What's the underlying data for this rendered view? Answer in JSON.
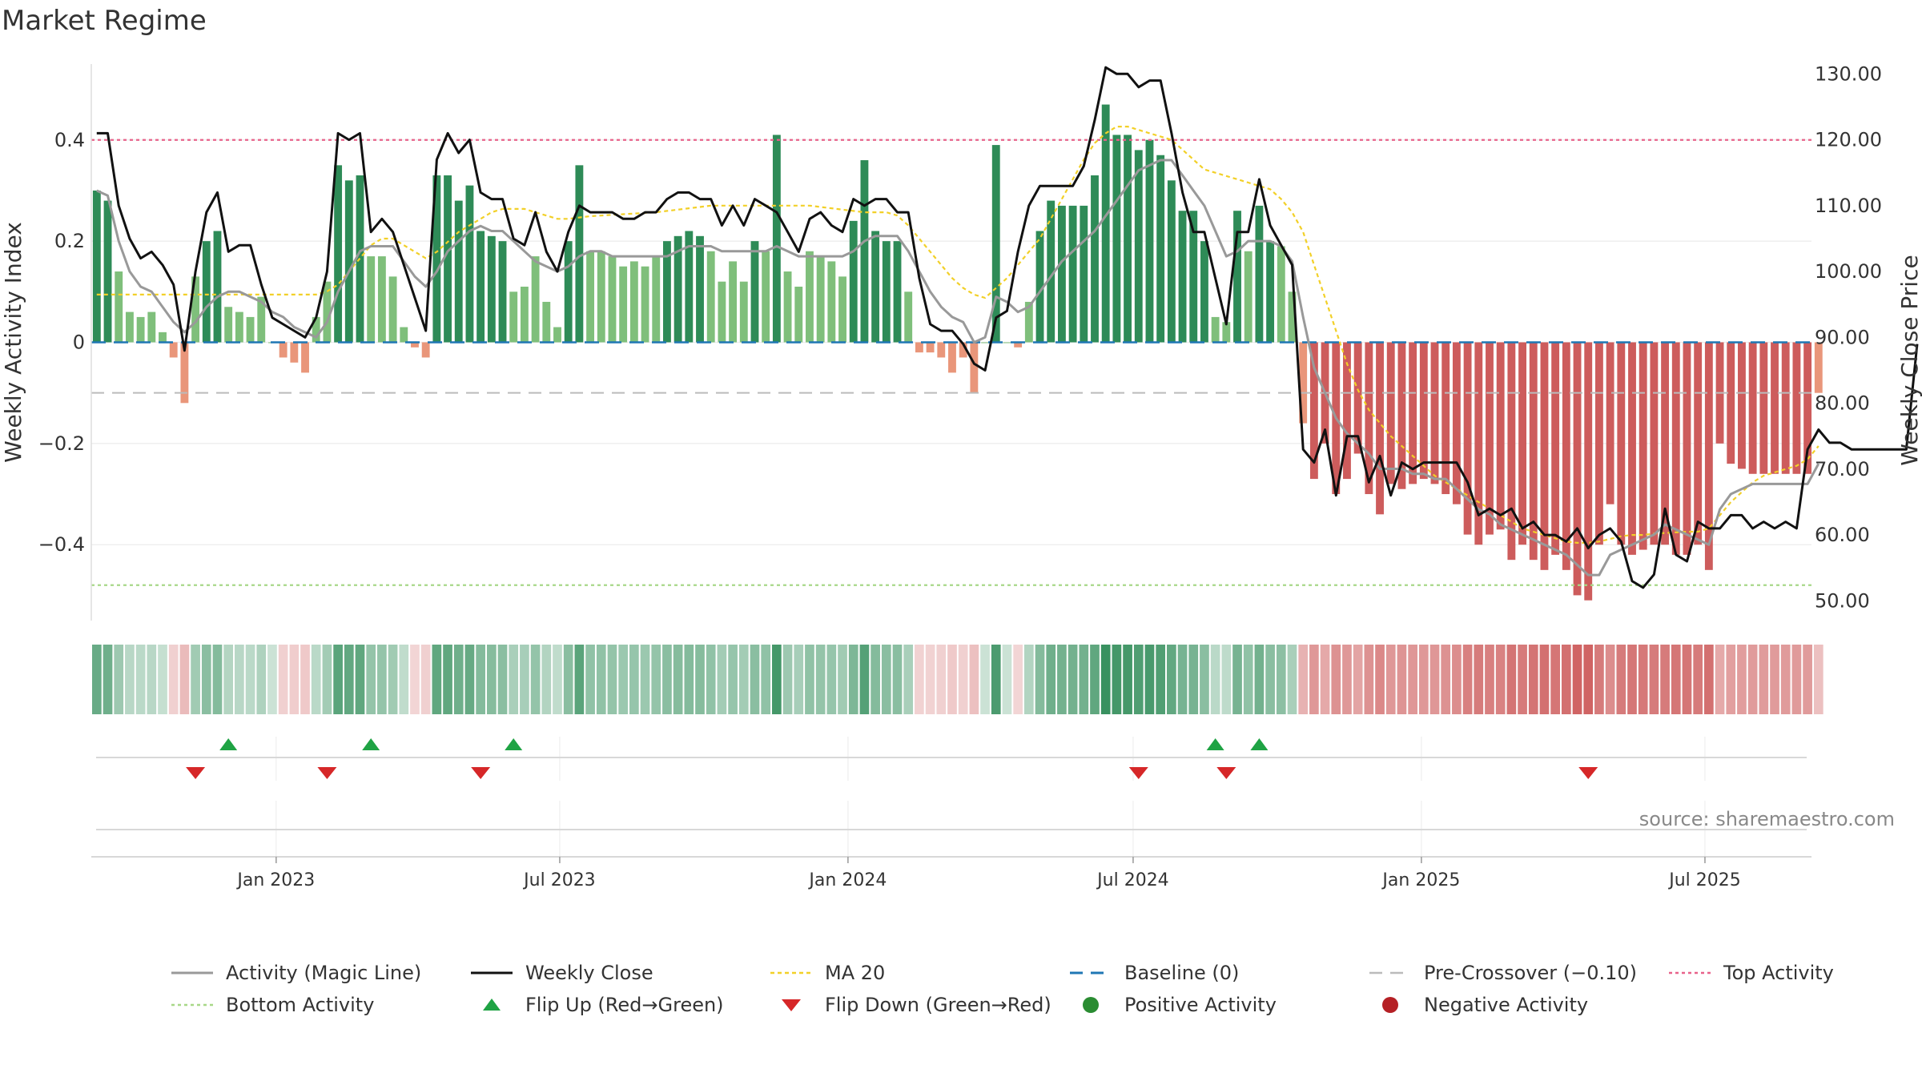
{
  "page": {
    "title": "Market Regime",
    "source": "source: sharemaestro.com"
  },
  "colors": {
    "pos_dark": "#2e8b57",
    "pos_light": "#7fbf7b",
    "neg_dark": "#cd5c5c",
    "neg_light": "#e9967a",
    "magic_line": "#999999",
    "weekly_close": "#111111",
    "ma20": "#f2d028",
    "baseline": "#1f77b4",
    "pre_crossover": "#bbbbbb",
    "top_activity": "#e8628a",
    "bottom_activity": "#a8d888",
    "flip_up": "#1fa344",
    "flip_down": "#d62728",
    "positive_dot": "#2a8c32",
    "negative_dot": "#b52025"
  },
  "chart_data": {
    "type": "bar",
    "title": "Market Regime",
    "ylabel": "Weekly Activity Index",
    "y2label": "Weekly Close Price",
    "ylim": [
      -0.55,
      0.55
    ],
    "y2lim": [
      47.0,
      131.5
    ],
    "y_ticks": [
      0.4,
      0.2,
      0,
      -0.2,
      -0.4
    ],
    "y_tick_labels": [
      "0.4",
      "0.2",
      "0",
      "−0.2",
      "−0.4"
    ],
    "y2_ticks": [
      130,
      120,
      110,
      100,
      90,
      80,
      70,
      60,
      50
    ],
    "y2_tick_labels": [
      "130.00",
      "120.00",
      "110.00",
      "100.00",
      "90.00",
      "80.00",
      "70.00",
      "60.00",
      "50.00"
    ],
    "x_ticks": [
      "2023-01-01",
      "2023-07-01",
      "2024-01-01",
      "2024-07-01",
      "2025-01-01",
      "2025-07-01"
    ],
    "x_tick_labels": [
      "Jan 2023",
      "Jul 2023",
      "Jan 2024",
      "Jul 2024",
      "Jan 2025",
      "Jul 2025"
    ],
    "xlim": [
      "2022-09-05",
      "2025-09-07"
    ],
    "weeks_start": "2022-09-05",
    "levels": {
      "top_activity": 0.4,
      "bottom_activity": -0.48,
      "baseline": 0,
      "pre_crossover": -0.1
    },
    "activity": [
      0.3,
      0.28,
      0.14,
      0.06,
      0.05,
      0.06,
      0.02,
      -0.03,
      -0.12,
      0.13,
      0.2,
      0.22,
      0.07,
      0.06,
      0.05,
      0.09,
      0,
      -0.03,
      -0.04,
      -0.06,
      0.05,
      0.12,
      0.35,
      0.32,
      0.33,
      0.17,
      0.17,
      0.13,
      0.03,
      -0.01,
      -0.03,
      0.33,
      0.33,
      0.28,
      0.31,
      0.22,
      0.21,
      0.2,
      0.1,
      0.11,
      0.17,
      0.08,
      0.03,
      0.2,
      0.35,
      0.18,
      0.18,
      0.17,
      0.15,
      0.16,
      0.15,
      0.17,
      0.2,
      0.21,
      0.22,
      0.21,
      0.18,
      0.12,
      0.16,
      0.12,
      0.2,
      0.18,
      0.41,
      0.14,
      0.11,
      0.18,
      0.17,
      0.16,
      0.13,
      0.24,
      0.36,
      0.22,
      0.2,
      0.2,
      0.1,
      -0.02,
      -0.02,
      -0.03,
      -0.06,
      -0.03,
      -0.1,
      0,
      0.39,
      0,
      -0.01,
      0.08,
      0.22,
      0.28,
      0.27,
      0.27,
      0.27,
      0.33,
      0.47,
      0.41,
      0.41,
      0.38,
      0.4,
      0.37,
      0.32,
      0.26,
      0.26,
      0.2,
      0.05,
      0.04,
      0.26,
      0.18,
      0.27,
      0.2,
      0.19,
      0.1,
      -0.16,
      -0.27,
      -0.2,
      -0.3,
      -0.27,
      -0.22,
      -0.3,
      -0.34,
      -0.28,
      -0.29,
      -0.28,
      -0.27,
      -0.28,
      -0.3,
      -0.32,
      -0.38,
      -0.4,
      -0.38,
      -0.37,
      -0.43,
      -0.4,
      -0.43,
      -0.45,
      -0.42,
      -0.45,
      -0.5,
      -0.51,
      -0.4,
      -0.32,
      -0.4,
      -0.42,
      -0.41,
      -0.4,
      -0.4,
      -0.42,
      -0.42,
      -0.4,
      -0.45,
      -0.2,
      -0.24,
      -0.25,
      -0.26,
      -0.26,
      -0.26,
      -0.26,
      -0.26,
      -0.26,
      -0.1
    ],
    "series": [
      {
        "name": "Activity (Magic Line)",
        "values": [
          0.3,
          0.29,
          0.2,
          0.14,
          0.11,
          0.1,
          0.07,
          0.04,
          0.02,
          0.04,
          0.07,
          0.09,
          0.1,
          0.1,
          0.09,
          0.08,
          0.06,
          0.05,
          0.03,
          0.02,
          0.01,
          0.04,
          0.1,
          0.14,
          0.18,
          0.19,
          0.19,
          0.19,
          0.16,
          0.13,
          0.11,
          0.14,
          0.18,
          0.2,
          0.22,
          0.23,
          0.22,
          0.22,
          0.2,
          0.18,
          0.16,
          0.15,
          0.14,
          0.15,
          0.17,
          0.18,
          0.18,
          0.17,
          0.17,
          0.17,
          0.17,
          0.17,
          0.17,
          0.18,
          0.19,
          0.19,
          0.19,
          0.18,
          0.18,
          0.18,
          0.18,
          0.18,
          0.19,
          0.18,
          0.17,
          0.17,
          0.17,
          0.17,
          0.17,
          0.18,
          0.2,
          0.21,
          0.21,
          0.21,
          0.18,
          0.14,
          0.1,
          0.07,
          0.05,
          0.04,
          0,
          0.01,
          0.09,
          0.08,
          0.06,
          0.07,
          0.1,
          0.13,
          0.16,
          0.18,
          0.2,
          0.22,
          0.25,
          0.28,
          0.31,
          0.34,
          0.35,
          0.36,
          0.36,
          0.33,
          0.3,
          0.27,
          0.22,
          0.17,
          0.18,
          0.2,
          0.2,
          0.2,
          0.19,
          0.16,
          0.05,
          -0.05,
          -0.1,
          -0.15,
          -0.18,
          -0.2,
          -0.22,
          -0.25,
          -0.25,
          -0.25,
          -0.26,
          -0.26,
          -0.27,
          -0.27,
          -0.29,
          -0.31,
          -0.33,
          -0.34,
          -0.36,
          -0.37,
          -0.38,
          -0.39,
          -0.4,
          -0.41,
          -0.42,
          -0.44,
          -0.46,
          -0.46,
          -0.42,
          -0.41,
          -0.4,
          -0.39,
          -0.38,
          -0.36,
          -0.37,
          -0.38,
          -0.39,
          -0.4,
          -0.33,
          -0.3,
          -0.29,
          -0.28,
          -0.28,
          -0.28,
          -0.28,
          -0.28,
          -0.28,
          -0.24
        ]
      },
      {
        "name": "Weekly Close",
        "values": [
          121,
          121,
          110,
          105,
          102,
          103,
          101,
          98,
          88,
          100,
          109,
          112,
          103,
          104,
          104,
          98,
          93,
          92,
          91,
          90,
          93,
          100,
          121,
          120,
          121,
          106,
          108,
          106,
          101,
          96,
          91,
          117,
          121,
          118,
          120,
          112,
          111,
          111,
          105,
          104,
          109,
          103,
          100,
          106,
          110,
          109,
          109,
          109,
          108,
          108,
          109,
          109,
          111,
          112,
          112,
          111,
          111,
          107,
          110,
          107,
          111,
          110,
          109,
          106,
          103,
          108,
          109,
          107,
          106,
          111,
          110,
          111,
          111,
          109,
          109,
          99,
          92,
          91,
          91,
          89,
          86,
          85,
          93,
          94,
          103,
          110,
          113,
          113,
          113,
          113,
          116,
          123,
          131,
          130,
          130,
          128,
          129,
          129,
          121,
          112,
          106,
          106,
          99,
          92,
          106,
          106,
          114,
          107,
          104,
          101,
          73,
          71,
          76,
          66,
          75,
          75,
          68,
          72,
          66,
          71,
          70,
          71,
          71,
          71,
          71,
          68,
          63,
          64,
          63,
          64,
          61,
          62,
          60,
          60,
          59,
          61,
          58,
          60,
          61,
          59,
          53,
          52,
          54,
          64,
          57,
          56,
          62,
          61,
          61,
          63,
          63,
          61,
          62,
          61,
          62,
          61,
          73,
          76,
          74,
          74,
          73,
          73,
          73,
          73,
          73,
          73,
          89
        ]
      },
      {
        "name": "MA 20",
        "values": [
          96.5,
          96.5,
          96.5,
          96.5,
          96.5,
          96.5,
          96.5,
          96.5,
          96.5,
          96.5,
          96.5,
          96.5,
          96.5,
          96.5,
          96.5,
          96.5,
          96.5,
          96.5,
          96.5,
          96.5,
          96.5,
          97,
          98,
          100,
          102,
          104,
          105,
          105,
          104,
          103,
          102,
          103,
          104.5,
          106,
          107,
          108,
          109,
          109.5,
          109.5,
          109.5,
          109,
          108.5,
          108,
          108,
          108.2,
          108.4,
          108.5,
          108.6,
          108.7,
          108.8,
          108.9,
          109,
          109.2,
          109.4,
          109.6,
          109.8,
          110,
          110,
          110,
          110,
          110,
          110,
          110,
          110,
          110,
          110,
          109.8,
          109.6,
          109.4,
          109.2,
          109,
          109,
          109,
          108.5,
          107,
          105,
          103,
          101,
          99,
          97.5,
          96.5,
          96,
          97.5,
          99,
          101,
          103,
          105,
          108,
          111,
          114,
          117,
          119.5,
          121,
          122,
          122,
          121.5,
          121,
          120.5,
          120,
          118.5,
          117,
          115.5,
          115,
          114.5,
          114,
          113.5,
          113,
          112.5,
          111,
          109,
          106,
          101,
          96,
          91,
          86,
          82,
          79,
          77,
          75,
          73.5,
          72,
          70.5,
          69,
          68,
          67,
          66,
          65,
          64,
          63,
          62,
          61,
          60.5,
          60,
          59.5,
          59,
          58.8,
          58.8,
          59,
          59.4,
          59.8,
          60,
          60,
          60.2,
          60.3,
          60.4,
          60.5,
          60.5,
          61,
          63,
          65,
          66.5,
          68,
          69,
          69.5,
          70,
          70.5,
          71.5,
          73.5
        ]
      }
    ],
    "flip_up_weeks": [
      12,
      25,
      38,
      102,
      106
    ],
    "flip_down_weeks": [
      9,
      21,
      35,
      95,
      103,
      136
    ],
    "legend": [
      {
        "key": "magic",
        "label": "Activity (Magic Line)"
      },
      {
        "key": "close",
        "label": "Weekly Close"
      },
      {
        "key": "ma20",
        "label": "MA 20"
      },
      {
        "key": "baseline",
        "label": "Baseline (0)"
      },
      {
        "key": "precross",
        "label": "Pre-Crossover (−0.10)"
      },
      {
        "key": "top",
        "label": "Top Activity"
      },
      {
        "key": "bottom",
        "label": "Bottom Activity"
      },
      {
        "key": "flipup",
        "label": "Flip Up (Red→Green)"
      },
      {
        "key": "flipdown",
        "label": "Flip Down (Green→Red)"
      },
      {
        "key": "posdot",
        "label": "Positive Activity"
      },
      {
        "key": "negdot",
        "label": "Negative Activity"
      }
    ]
  }
}
